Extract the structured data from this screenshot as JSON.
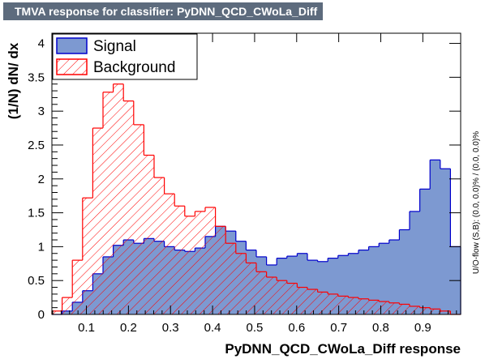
{
  "title": "TMVA response for classifier: PyDNN_QCD_CWoLa_Diff",
  "side_label": "U/O-flow (S,B): (0.0, 0.0)% / (0.0, 0.0)%",
  "chart_data": {
    "type": "histogram",
    "xlabel": "PyDNN_QCD_CWoLa_Diff response",
    "ylabel": "(1/N) dN/ dx",
    "xlim": [
      0.018,
      0.99
    ],
    "ylim": [
      0,
      4.15
    ],
    "x_ticks": [
      "0.1",
      "0.2",
      "0.3",
      "0.4",
      "0.5",
      "0.6",
      "0.7",
      "0.8",
      "0.9"
    ],
    "y_ticks": [
      "0",
      "0.5",
      "1",
      "1.5",
      "2",
      "2.5",
      "3",
      "3.5",
      "4"
    ],
    "legend_position": "top-left",
    "bin_edges": [
      0.018,
      0.0423,
      0.0666,
      0.0909,
      0.1152,
      0.1395,
      0.1638,
      0.1881,
      0.2124,
      0.2367,
      0.261,
      0.2853,
      0.3096,
      0.3339,
      0.3582,
      0.3825,
      0.4068,
      0.4311,
      0.4554,
      0.4797,
      0.504,
      0.5283,
      0.5526,
      0.5769,
      0.6012,
      0.6255,
      0.6498,
      0.6741,
      0.6984,
      0.7227,
      0.747,
      0.7713,
      0.7956,
      0.8199,
      0.8442,
      0.8685,
      0.8928,
      0.9171,
      0.9414,
      0.9657,
      0.99
    ],
    "series": [
      {
        "name": "Signal",
        "fill": "#7d99d1",
        "line": "#0000cc",
        "hatched": false,
        "values": [
          0.0,
          0.05,
          0.18,
          0.35,
          0.6,
          0.85,
          1.02,
          1.1,
          1.05,
          1.12,
          1.08,
          1.0,
          0.95,
          0.93,
          0.98,
          1.15,
          1.3,
          1.23,
          1.08,
          0.95,
          0.85,
          0.73,
          0.83,
          0.86,
          0.9,
          0.8,
          0.78,
          0.83,
          0.87,
          0.9,
          0.95,
          1.0,
          1.05,
          1.1,
          1.25,
          1.52,
          1.85,
          2.28,
          2.15,
          1.0
        ]
      },
      {
        "name": "Background",
        "fill": "none",
        "line": "#ff0000",
        "hatched": true,
        "values": [
          0.05,
          0.25,
          0.8,
          1.72,
          2.75,
          3.28,
          3.4,
          3.15,
          2.8,
          2.35,
          2.02,
          1.78,
          1.6,
          1.45,
          1.52,
          1.58,
          1.3,
          1.05,
          0.9,
          0.76,
          0.63,
          0.55,
          0.5,
          0.46,
          0.4,
          0.37,
          0.33,
          0.3,
          0.27,
          0.25,
          0.23,
          0.21,
          0.19,
          0.17,
          0.15,
          0.12,
          0.1,
          0.08,
          0.05,
          0.0
        ]
      }
    ]
  }
}
